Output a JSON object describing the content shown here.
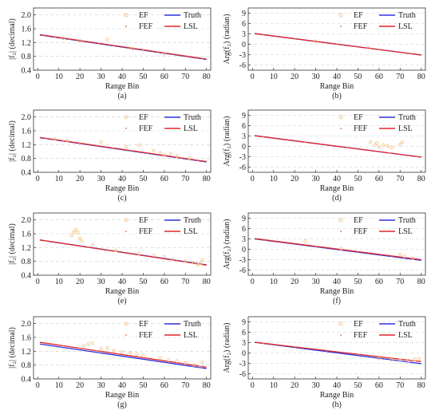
{
  "chart_data": [
    {
      "id": "a",
      "type": "scatter",
      "caption": "(a)",
      "ylabel": "|f₂| (decimal)",
      "xlabel": "Range Bin",
      "xlim": [
        -2,
        82
      ],
      "ylim": [
        0.4,
        2.2
      ],
      "xticks": [
        0,
        10,
        20,
        30,
        40,
        50,
        60,
        70,
        80
      ],
      "xtick_labels": [
        "0",
        "10",
        "20",
        "30",
        "40",
        "50",
        "60",
        "70",
        "80"
      ],
      "yticks": [
        0.4,
        0.8,
        1.2,
        1.6,
        2.0
      ],
      "ytick_labels": [
        "0.4",
        "0.8",
        "1.2",
        "1.6",
        "2.0"
      ],
      "grid": true,
      "legend_position": "top-right",
      "legend": [
        {
          "label": "EF"
        },
        {
          "label": "Truth"
        },
        {
          "label": "FEF"
        },
        {
          "label": "LSL"
        }
      ],
      "truth": [
        [
          1,
          1.42
        ],
        [
          80,
          0.71
        ]
      ],
      "lsl": [
        [
          1,
          1.43
        ],
        [
          80,
          0.72
        ]
      ],
      "ef_points": [
        [
          33,
          1.29
        ],
        [
          12,
          1.33
        ],
        [
          20,
          1.25
        ],
        [
          45,
          1.02
        ],
        [
          60,
          0.88
        ]
      ],
      "fef_points": [
        [
          3,
          1.4
        ],
        [
          8,
          1.36
        ],
        [
          15,
          1.29
        ],
        [
          22,
          1.23
        ],
        [
          29,
          1.17
        ],
        [
          36,
          1.11
        ],
        [
          43,
          1.04
        ],
        [
          50,
          0.98
        ],
        [
          57,
          0.92
        ],
        [
          64,
          0.85
        ],
        [
          71,
          0.79
        ],
        [
          78,
          0.73
        ]
      ]
    },
    {
      "id": "b",
      "type": "scatter",
      "caption": "(b)",
      "ylabel": "Arg(f₂) (radian)",
      "xlabel": "Range Bin",
      "xlim": [
        -2,
        82
      ],
      "ylim": [
        -7.5,
        10.5
      ],
      "xticks": [
        0,
        10,
        20,
        30,
        40,
        50,
        60,
        70,
        80
      ],
      "xtick_labels": [
        "0",
        "10",
        "20",
        "30",
        "40",
        "50",
        "60",
        "70",
        "80"
      ],
      "yticks": [
        -6,
        -3,
        0,
        3,
        6,
        9
      ],
      "ytick_labels": [
        "-6",
        "-3",
        "0",
        "3",
        "6",
        "9"
      ],
      "grid": true,
      "legend_position": "top-right",
      "legend": [
        {
          "label": "EF"
        },
        {
          "label": "Truth"
        },
        {
          "label": "FEF"
        },
        {
          "label": "LSL"
        }
      ],
      "truth": [
        [
          1,
          3.1
        ],
        [
          80,
          -3.1
        ]
      ],
      "lsl": [
        [
          1,
          3.1
        ],
        [
          80,
          -3.1
        ]
      ],
      "ef_points": [
        [
          30,
          0.9
        ],
        [
          55,
          -1.0
        ]
      ],
      "fef_points": [
        [
          5,
          2.8
        ],
        [
          20,
          1.6
        ],
        [
          40,
          0.0
        ],
        [
          60,
          -1.6
        ],
        [
          75,
          -2.7
        ]
      ]
    },
    {
      "id": "c",
      "type": "scatter",
      "caption": "(c)",
      "ylabel": "|f₂| (decimal)",
      "xlabel": "Range Bin",
      "xlim": [
        -2,
        82
      ],
      "ylim": [
        0.4,
        2.2
      ],
      "xticks": [
        0,
        10,
        20,
        30,
        40,
        50,
        60,
        70,
        80
      ],
      "xtick_labels": [
        "0",
        "10",
        "20",
        "30",
        "40",
        "50",
        "60",
        "70",
        "80"
      ],
      "yticks": [
        0.4,
        0.8,
        1.2,
        1.6,
        2.0
      ],
      "ytick_labels": [
        "0.4",
        "0.8",
        "1.2",
        "1.6",
        "2.0"
      ],
      "grid": true,
      "legend_position": "top-right",
      "legend": [
        {
          "label": "EF"
        },
        {
          "label": "Truth"
        },
        {
          "label": "FEF"
        },
        {
          "label": "LSL"
        }
      ],
      "truth": [
        [
          1,
          1.4
        ],
        [
          80,
          0.7
        ]
      ],
      "lsl": [
        [
          1,
          1.41
        ],
        [
          80,
          0.71
        ]
      ],
      "ef_points": [
        [
          8,
          1.36
        ],
        [
          14,
          1.31
        ],
        [
          30,
          1.28
        ],
        [
          42,
          1.14
        ],
        [
          48,
          1.18
        ],
        [
          55,
          1.02
        ],
        [
          58,
          0.96
        ],
        [
          60,
          0.9
        ],
        [
          63,
          0.94
        ],
        [
          66,
          0.86
        ],
        [
          72,
          0.81
        ]
      ],
      "fef_points": [
        [
          4,
          1.38
        ],
        [
          12,
          1.31
        ],
        [
          20,
          1.24
        ],
        [
          28,
          1.17
        ],
        [
          36,
          1.1
        ],
        [
          44,
          1.03
        ],
        [
          52,
          0.95
        ],
        [
          60,
          0.88
        ],
        [
          68,
          0.81
        ],
        [
          76,
          0.74
        ]
      ]
    },
    {
      "id": "d",
      "type": "scatter",
      "caption": "(d)",
      "ylabel": "Arg(f₂) (radian)",
      "xlabel": "Range Bin",
      "xlim": [
        -2,
        82
      ],
      "ylim": [
        -7.5,
        10.5
      ],
      "xticks": [
        0,
        10,
        20,
        30,
        40,
        50,
        60,
        70,
        80
      ],
      "xtick_labels": [
        "0",
        "10",
        "20",
        "30",
        "40",
        "50",
        "60",
        "70",
        "80"
      ],
      "yticks": [
        -6,
        -3,
        0,
        3,
        6,
        9
      ],
      "ytick_labels": [
        "-6",
        "-3",
        "0",
        "3",
        "6",
        "9"
      ],
      "grid": true,
      "legend_position": "top-right",
      "legend": [
        {
          "label": "EF"
        },
        {
          "label": "Truth"
        },
        {
          "label": "FEF"
        },
        {
          "label": "LSL"
        }
      ],
      "truth": [
        [
          1,
          3.1
        ],
        [
          80,
          -3.1
        ]
      ],
      "lsl": [
        [
          1,
          3.1
        ],
        [
          80,
          -3.1
        ]
      ],
      "ef_points": [
        [
          56,
          1.2
        ],
        [
          58,
          0.4
        ],
        [
          59,
          1.0
        ],
        [
          60,
          -0.2
        ],
        [
          62,
          0.4
        ],
        [
          64,
          0.1
        ],
        [
          66,
          -0.3
        ],
        [
          70,
          0.5
        ],
        [
          71,
          1.2
        ]
      ],
      "fef_points": [
        [
          5,
          2.8
        ],
        [
          25,
          1.2
        ],
        [
          45,
          -0.4
        ],
        [
          65,
          -1.9
        ],
        [
          78,
          -2.9
        ]
      ]
    },
    {
      "id": "e",
      "type": "scatter",
      "caption": "(e)",
      "ylabel": "|f₂| (decimal)",
      "xlabel": "Range Bin",
      "xlim": [
        -2,
        82
      ],
      "ylim": [
        0.4,
        2.2
      ],
      "xticks": [
        0,
        10,
        20,
        30,
        40,
        50,
        60,
        70,
        80
      ],
      "xtick_labels": [
        "0",
        "10",
        "20",
        "30",
        "40",
        "50",
        "60",
        "70",
        "80"
      ],
      "yticks": [
        0.4,
        0.8,
        1.2,
        1.6,
        2.0
      ],
      "ytick_labels": [
        "0.4",
        "0.8",
        "1.2",
        "1.6",
        "2.0"
      ],
      "grid": true,
      "legend_position": "top-right",
      "legend": [
        {
          "label": "EF"
        },
        {
          "label": "Truth"
        },
        {
          "label": "FEF"
        },
        {
          "label": "LSL"
        }
      ],
      "truth": [
        [
          1,
          1.42
        ],
        [
          80,
          0.7
        ]
      ],
      "lsl": [
        [
          1,
          1.42
        ],
        [
          80,
          0.69
        ]
      ],
      "ef_points": [
        [
          16,
          1.55
        ],
        [
          17,
          1.65
        ],
        [
          18,
          1.72
        ],
        [
          19,
          1.63
        ],
        [
          20,
          1.46
        ],
        [
          21,
          1.38
        ],
        [
          26,
          1.28
        ],
        [
          37,
          1.12
        ],
        [
          48,
          1.03
        ],
        [
          55,
          0.98
        ],
        [
          60,
          0.94
        ],
        [
          64,
          0.86
        ],
        [
          70,
          0.81
        ],
        [
          74,
          0.76
        ],
        [
          76,
          0.7
        ],
        [
          77,
          0.75
        ],
        [
          78,
          0.84
        ]
      ],
      "fef_points": [
        [
          4,
          1.4
        ],
        [
          12,
          1.33
        ],
        [
          24,
          1.22
        ],
        [
          34,
          1.13
        ],
        [
          44,
          1.04
        ],
        [
          56,
          0.93
        ],
        [
          66,
          0.83
        ],
        [
          78,
          0.72
        ]
      ]
    },
    {
      "id": "f",
      "type": "scatter",
      "caption": "(f)",
      "ylabel": "Arg(f₂) (radian)",
      "xlabel": "Range Bin",
      "xlim": [
        -2,
        82
      ],
      "ylim": [
        -7.5,
        10.5
      ],
      "xticks": [
        0,
        10,
        20,
        30,
        40,
        50,
        60,
        70,
        80
      ],
      "xtick_labels": [
        "0",
        "10",
        "20",
        "30",
        "40",
        "50",
        "60",
        "70",
        "80"
      ],
      "yticks": [
        -6,
        -3,
        0,
        3,
        6,
        9
      ],
      "ytick_labels": [
        "-6",
        "-3",
        "0",
        "3",
        "6",
        "9"
      ],
      "grid": true,
      "legend_position": "top-right",
      "legend": [
        {
          "label": "EF"
        },
        {
          "label": "Truth"
        },
        {
          "label": "FEF"
        },
        {
          "label": "LSL"
        }
      ],
      "truth": [
        [
          1,
          3.0
        ],
        [
          80,
          -3.2
        ]
      ],
      "lsl": [
        [
          1,
          3.1
        ],
        [
          80,
          -3.0
        ]
      ],
      "ef_points": [
        [
          25,
          2.4
        ],
        [
          42,
          0.2
        ],
        [
          70,
          -1.5
        ],
        [
          72,
          -2.0
        ],
        [
          76,
          -2.6
        ]
      ],
      "fef_points": [
        [
          6,
          2.6
        ],
        [
          30,
          0.8
        ],
        [
          50,
          -0.8
        ],
        [
          66,
          -2.1
        ]
      ]
    },
    {
      "id": "g",
      "type": "scatter",
      "caption": "(g)",
      "ylabel": "|f₂| (decimal)",
      "xlabel": "Range Bin",
      "xlim": [
        -2,
        82
      ],
      "ylim": [
        0.4,
        2.2
      ],
      "xticks": [
        0,
        10,
        20,
        30,
        40,
        50,
        60,
        70,
        80
      ],
      "xtick_labels": [
        "0",
        "10",
        "20",
        "30",
        "40",
        "50",
        "60",
        "70",
        "80"
      ],
      "yticks": [
        0.4,
        0.8,
        1.2,
        1.6,
        2.0
      ],
      "ytick_labels": [
        "0.4",
        "0.8",
        "1.2",
        "1.6",
        "2.0"
      ],
      "grid": true,
      "legend_position": "top-right",
      "legend": [
        {
          "label": "EF"
        },
        {
          "label": "Truth"
        },
        {
          "label": "FEF"
        },
        {
          "label": "LSL"
        }
      ],
      "truth": [
        [
          1,
          1.41
        ],
        [
          80,
          0.7
        ]
      ],
      "lsl": [
        [
          1,
          1.46
        ],
        [
          80,
          0.74
        ]
      ],
      "ef_points": [
        [
          22,
          1.36
        ],
        [
          24,
          1.42
        ],
        [
          26,
          1.44
        ],
        [
          30,
          1.27
        ],
        [
          33,
          1.3
        ],
        [
          36,
          1.22
        ],
        [
          40,
          1.18
        ],
        [
          44,
          1.15
        ],
        [
          47,
          1.12
        ],
        [
          50,
          1.07
        ],
        [
          58,
          1.0
        ],
        [
          62,
          0.95
        ],
        [
          66,
          0.92
        ],
        [
          70,
          0.86
        ],
        [
          74,
          0.8
        ],
        [
          77,
          0.74
        ],
        [
          78,
          0.88
        ]
      ],
      "fef_points": [
        [
          4,
          1.41
        ],
        [
          12,
          1.36
        ],
        [
          20,
          1.28
        ],
        [
          28,
          1.21
        ],
        [
          38,
          1.12
        ],
        [
          48,
          1.03
        ],
        [
          58,
          0.94
        ],
        [
          68,
          0.85
        ],
        [
          76,
          0.78
        ]
      ]
    },
    {
      "id": "h",
      "type": "scatter",
      "caption": "(h)",
      "ylabel": "Arg(f₂) (radian)",
      "xlabel": "Range Bin",
      "xlim": [
        -2,
        82
      ],
      "ylim": [
        -7.5,
        10.5
      ],
      "xticks": [
        0,
        10,
        20,
        30,
        40,
        50,
        60,
        70,
        80
      ],
      "xtick_labels": [
        "0",
        "10",
        "20",
        "30",
        "40",
        "50",
        "60",
        "70",
        "80"
      ],
      "yticks": [
        -6,
        -3,
        0,
        3,
        6,
        9
      ],
      "ytick_labels": [
        "-6",
        "-3",
        "0",
        "3",
        "6",
        "9"
      ],
      "grid": true,
      "legend_position": "top-right",
      "legend": [
        {
          "label": "EF"
        },
        {
          "label": "Truth"
        },
        {
          "label": "FEF"
        },
        {
          "label": "LSL"
        }
      ],
      "truth": [
        [
          1,
          3.1
        ],
        [
          80,
          -3.1
        ]
      ],
      "lsl": [
        [
          1,
          3.1
        ],
        [
          80,
          -2.5
        ]
      ],
      "ef_points": [
        [
          60,
          -1.6
        ],
        [
          66,
          -2.0
        ],
        [
          70,
          -2.1
        ],
        [
          74,
          -2.2
        ],
        [
          77,
          -1.9
        ],
        [
          79,
          -1.7
        ]
      ],
      "fef_points": [
        [
          5,
          2.8
        ],
        [
          20,
          1.7
        ],
        [
          35,
          0.6
        ],
        [
          50,
          -0.4
        ],
        [
          64,
          -1.5
        ],
        [
          76,
          -2.3
        ]
      ]
    }
  ],
  "style": {
    "truth_color": "#2a32e0",
    "lsl_color": "#e0262b",
    "ef_color": "#f4c58a",
    "fef_color": "#e08a5a",
    "grid_color": "#d0d0d0",
    "axis_color": "#333333"
  }
}
